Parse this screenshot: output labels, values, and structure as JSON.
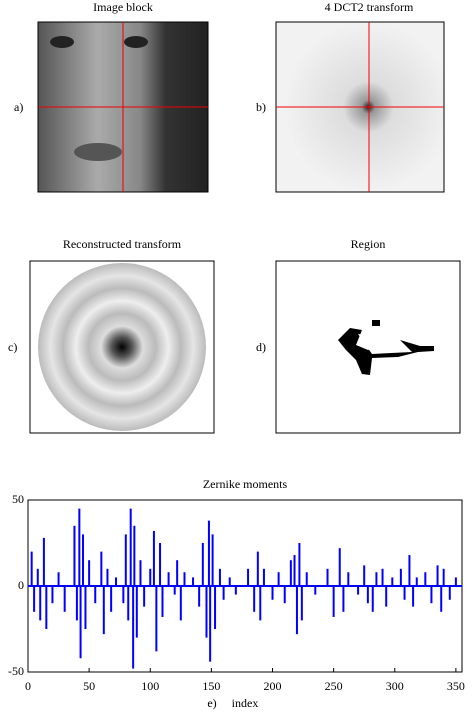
{
  "panels": [
    {
      "title": "Image block",
      "label": "a)"
    },
    {
      "title": "4 DCT2 transform",
      "label": "b)"
    },
    {
      "title": "Reconstructed transform",
      "label": "c)"
    },
    {
      "title": "Region",
      "label": "d)"
    }
  ],
  "chart_data": {
    "type": "bar",
    "title": "Zernike moments",
    "xlabel": "index",
    "panel_label": "e)",
    "color": "#0000ff",
    "xlim": [
      0,
      355
    ],
    "xticks": [
      0,
      50,
      100,
      150,
      200,
      250,
      300,
      350
    ],
    "ylim": [
      -50,
      50
    ],
    "yticks": [
      -50,
      0,
      50
    ],
    "x": [
      3,
      5,
      8,
      10,
      13,
      15,
      20,
      25,
      30,
      38,
      40,
      42,
      43,
      45,
      47,
      50,
      55,
      60,
      62,
      65,
      68,
      72,
      78,
      80,
      82,
      84,
      86,
      87,
      89,
      92,
      95,
      100,
      103,
      105,
      108,
      110,
      115,
      120,
      122,
      125,
      128,
      135,
      140,
      143,
      146,
      148,
      149,
      151,
      153,
      157,
      160,
      165,
      170,
      180,
      185,
      188,
      190,
      193,
      200,
      205,
      210,
      215,
      218,
      220,
      222,
      224,
      228,
      235,
      245,
      250,
      255,
      258,
      262,
      270,
      275,
      278,
      282,
      285,
      290,
      293,
      298,
      305,
      308,
      312,
      315,
      318,
      325,
      330,
      335,
      338,
      340,
      345,
      350
    ],
    "values": [
      20,
      -15,
      10,
      -20,
      28,
      -25,
      -10,
      8,
      -15,
      35,
      -20,
      45,
      -42,
      30,
      -25,
      15,
      -10,
      20,
      -28,
      10,
      -15,
      5,
      -10,
      30,
      -20,
      45,
      -48,
      35,
      -30,
      15,
      -12,
      10,
      32,
      -38,
      25,
      -18,
      8,
      -5,
      15,
      -20,
      8,
      5,
      -12,
      25,
      -30,
      38,
      -44,
      30,
      -25,
      10,
      -8,
      5,
      -5,
      10,
      -15,
      20,
      -20,
      10,
      -8,
      8,
      -10,
      15,
      18,
      -28,
      25,
      -20,
      8,
      -5,
      10,
      -18,
      22,
      -15,
      8,
      -5,
      12,
      -10,
      -15,
      8,
      10,
      -12,
      5,
      10,
      -8,
      18,
      -12,
      5,
      8,
      -10,
      12,
      -15,
      10,
      -8,
      5
    ]
  }
}
